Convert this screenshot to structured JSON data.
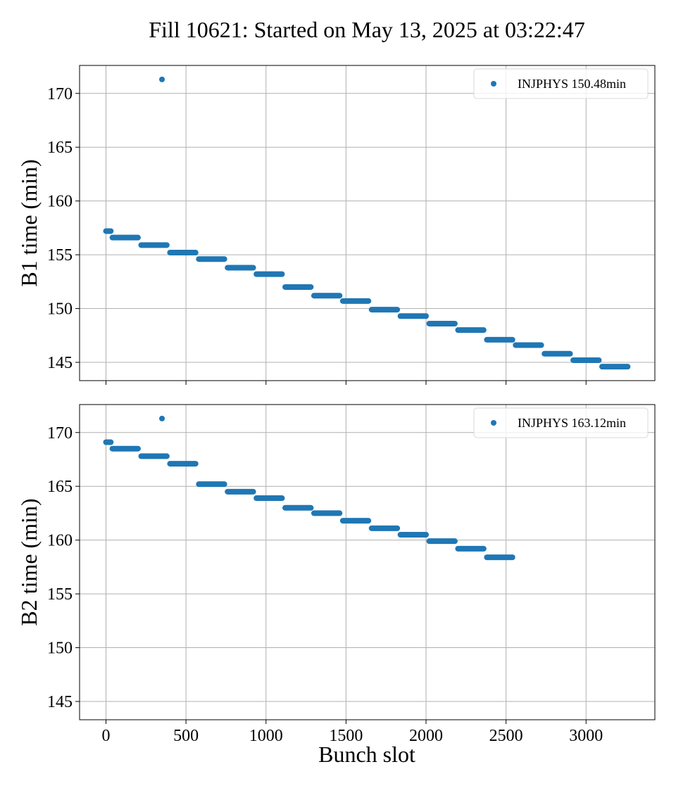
{
  "chart_data": {
    "title": "Fill 10621: Started on May 13, 2025 at 03:22:47",
    "xlabel": "Bunch slot",
    "colors": {
      "series": "#1f77b4"
    },
    "grid": true,
    "panels": [
      {
        "type": "scatter",
        "ylabel": "B1 time (min)",
        "xlim": [
          -165,
          3430
        ],
        "ylim": [
          143.3,
          172.6
        ],
        "xticks": [
          0,
          500,
          1000,
          1500,
          2000,
          2500,
          3000
        ],
        "yticks": [
          145,
          150,
          155,
          160,
          165,
          170
        ],
        "legend_loc": "upper right",
        "series": [
          {
            "name": "INJPHYS 150.48min",
            "segments": [
              {
                "x": [
                  0,
                  30
                ],
                "y": 157.2
              },
              {
                "x": [
                  40,
                  200
                ],
                "y": 156.6
              },
              {
                "x": [
                  220,
                  380
                ],
                "y": 155.9
              },
              {
                "x": [
                  400,
                  560
                ],
                "y": 155.2
              },
              {
                "x": [
                  580,
                  740
                ],
                "y": 154.6
              },
              {
                "x": [
                  760,
                  920
                ],
                "y": 153.8
              },
              {
                "x": [
                  940,
                  1100
                ],
                "y": 153.2
              },
              {
                "x": [
                  1120,
                  1280
                ],
                "y": 152.0
              },
              {
                "x": [
                  1300,
                  1460
                ],
                "y": 151.2
              },
              {
                "x": [
                  1480,
                  1640
                ],
                "y": 150.7
              },
              {
                "x": [
                  1660,
                  1820
                ],
                "y": 149.9
              },
              {
                "x": [
                  1840,
                  2000
                ],
                "y": 149.3
              },
              {
                "x": [
                  2020,
                  2180
                ],
                "y": 148.6
              },
              {
                "x": [
                  2200,
                  2360
                ],
                "y": 148.0
              },
              {
                "x": [
                  2380,
                  2540
                ],
                "y": 147.1
              },
              {
                "x": [
                  2560,
                  2720
                ],
                "y": 146.6
              },
              {
                "x": [
                  2740,
                  2900
                ],
                "y": 145.8
              },
              {
                "x": [
                  2920,
                  3080
                ],
                "y": 145.2
              },
              {
                "x": [
                  3100,
                  3260
                ],
                "y": 144.6
              }
            ],
            "points": [
              {
                "x": 350,
                "y": 171.3
              }
            ]
          }
        ]
      },
      {
        "type": "scatter",
        "ylabel": "B2 time (min)",
        "xlim": [
          -165,
          3430
        ],
        "ylim": [
          143.3,
          172.6
        ],
        "xticks": [
          0,
          500,
          1000,
          1500,
          2000,
          2500,
          3000
        ],
        "yticks": [
          145,
          150,
          155,
          160,
          165,
          170
        ],
        "legend_loc": "upper right",
        "series": [
          {
            "name": "INJPHYS 163.12min",
            "segments": [
              {
                "x": [
                  0,
                  30
                ],
                "y": 169.1
              },
              {
                "x": [
                  40,
                  200
                ],
                "y": 168.5
              },
              {
                "x": [
                  220,
                  380
                ],
                "y": 167.8
              },
              {
                "x": [
                  400,
                  560
                ],
                "y": 167.1
              },
              {
                "x": [
                  580,
                  740
                ],
                "y": 165.2
              },
              {
                "x": [
                  760,
                  920
                ],
                "y": 164.5
              },
              {
                "x": [
                  940,
                  1100
                ],
                "y": 163.9
              },
              {
                "x": [
                  1120,
                  1280
                ],
                "y": 163.0
              },
              {
                "x": [
                  1300,
                  1460
                ],
                "y": 162.5
              },
              {
                "x": [
                  1480,
                  1640
                ],
                "y": 161.8
              },
              {
                "x": [
                  1660,
                  1820
                ],
                "y": 161.1
              },
              {
                "x": [
                  1840,
                  2000
                ],
                "y": 160.5
              },
              {
                "x": [
                  2020,
                  2180
                ],
                "y": 159.9
              },
              {
                "x": [
                  2200,
                  2360
                ],
                "y": 159.2
              },
              {
                "x": [
                  2380,
                  2540
                ],
                "y": 158.4
              }
            ],
            "points": [
              {
                "x": 350,
                "y": 171.3
              }
            ]
          }
        ]
      }
    ]
  }
}
